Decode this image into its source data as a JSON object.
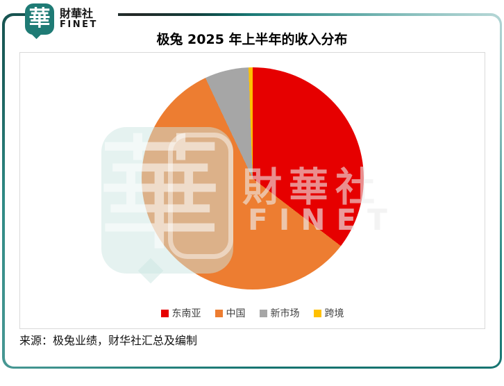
{
  "brand": {
    "logo_glyph": "華",
    "name_cn": "財華社",
    "name_en": "FINET"
  },
  "title": "极兔 2025 年上半年的收入分布",
  "chart_data": {
    "type": "pie",
    "title": "极兔 2025 年上半年的收入分布",
    "categories": [
      "东南亚",
      "中国",
      "新市场",
      "跨境"
    ],
    "values": [
      35.4,
      57.6,
      6.4,
      0.6
    ],
    "unit": "%",
    "colors": [
      "#e60000",
      "#ed7d31",
      "#a6a6a6",
      "#ffc000"
    ],
    "start_angle_deg": 0,
    "direction": "clockwise",
    "legend_position": "bottom",
    "data_labels": false
  },
  "watermark": {
    "logo_glyph": "華",
    "text_cn": "財華社",
    "text_en": "FINET"
  },
  "source": {
    "text": "来源：极兔业绩，财华社汇总及编制"
  },
  "colors": {
    "brand_teal": "#1f7b75",
    "frame_teal": "#157370",
    "plot_border": "#d9d9d9"
  }
}
